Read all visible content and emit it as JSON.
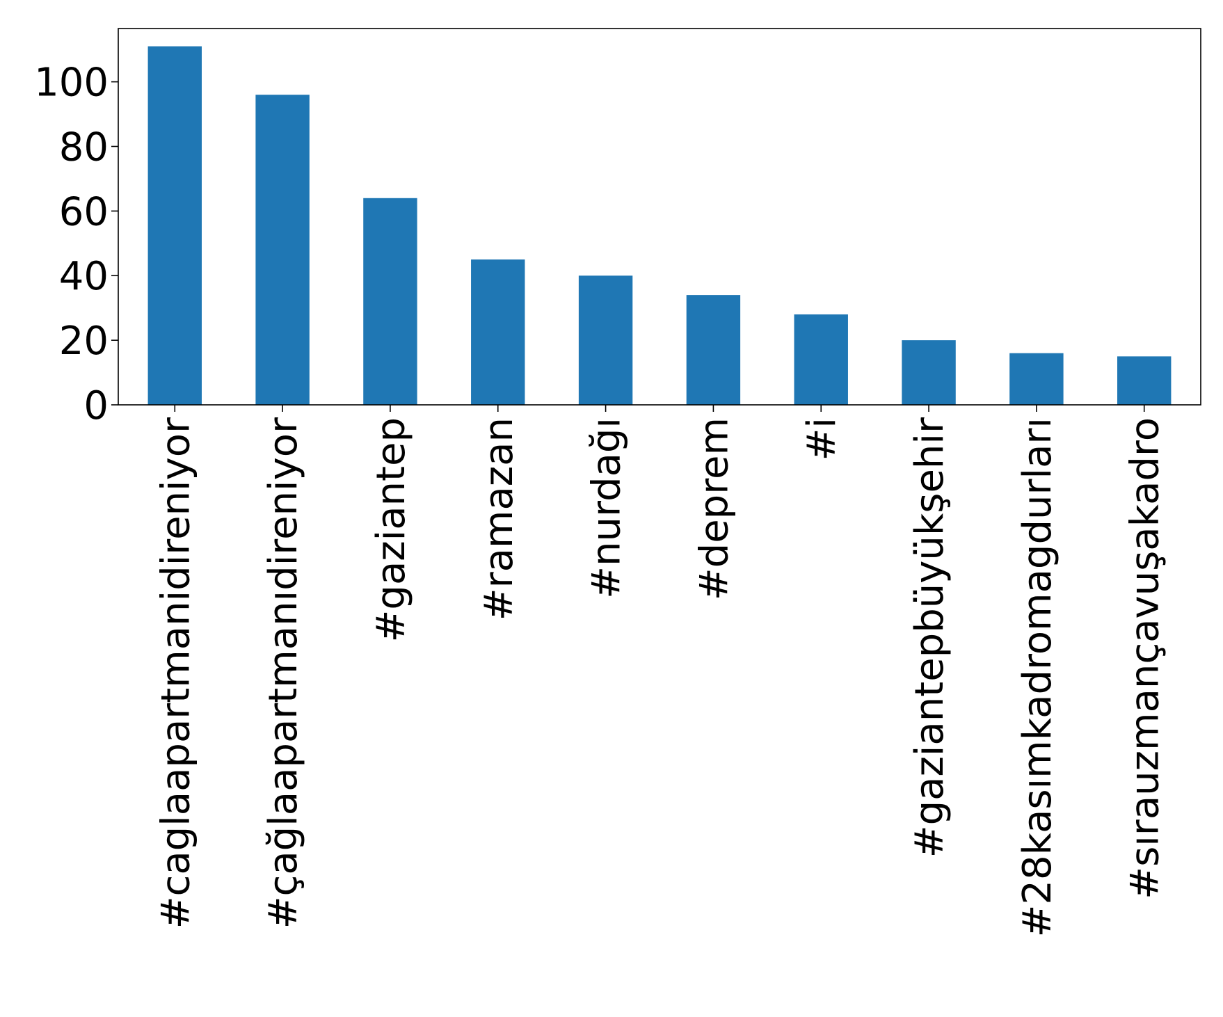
{
  "chart_data": {
    "type": "bar",
    "categories": [
      "#caglaapartmanidireniyor",
      "#çağlaapartmanıdireniyor",
      "#gaziantep",
      "#ramazan",
      "#nurdağı",
      "#deprem",
      "#i",
      "#gaziantepbüyükşehir",
      "#28kasımkadromagdurları",
      "#sırauzmançavuşakadro"
    ],
    "values": [
      111,
      96,
      64,
      45,
      40,
      34,
      28,
      20,
      16,
      15
    ],
    "ylim": [
      0,
      116.5
    ],
    "yticks": [
      0,
      20,
      40,
      60,
      80,
      100
    ],
    "ytick_labels": [
      "0",
      "20",
      "40",
      "60",
      "80",
      "100"
    ],
    "grid": false,
    "bar_color": "#1f77b4"
  }
}
